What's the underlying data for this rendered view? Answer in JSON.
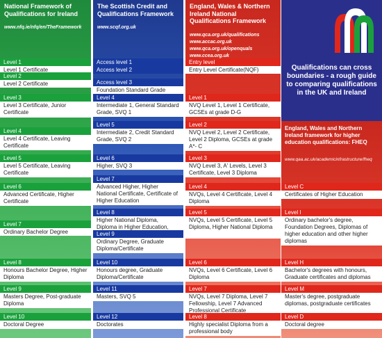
{
  "ireland": {
    "title": "National Framework of Qualifications for Ireland",
    "url": "www.nfq.ie/nfq/en/TheFramework",
    "levels": [
      {
        "label": "Level 1",
        "text": "Level 1 Certificate"
      },
      {
        "label": "Level 2",
        "text": "Level 2 Certificate"
      },
      {
        "label": "Level 3",
        "text": "Level 3 Certificate, Junior Certificate"
      },
      {
        "label": "Level 4",
        "text": "Level 4 Certificate, Leaving Certificate"
      },
      {
        "label": "Level 5",
        "text": "Level 5 Certificate, Leaving Certificate"
      },
      {
        "label": "Level 6",
        "text": "Advanced Certificate, Higher Certificate"
      },
      {
        "label": "Level 7",
        "text": "Ordinary Bachelor Degree"
      },
      {
        "label": "Level 8",
        "text": "Honours Bachelor Degree, Higher Diploma"
      },
      {
        "label": "Level 9",
        "text": "Masters Degree, Post-graduate Diploma"
      },
      {
        "label": "Level 10",
        "text": "Doctoral Degree"
      }
    ]
  },
  "scotland": {
    "title": "The Scottish Credit and Qualifications Framework",
    "url": "www.scqf.org.uk",
    "levels": [
      {
        "label": "Access level 1",
        "text": ""
      },
      {
        "label": "Access level 2",
        "text": ""
      },
      {
        "label": "Access level 3",
        "text": "Foundation Standard Grade"
      },
      {
        "label": "Level 4",
        "text": "Intermediate 1, General Standard Grade, SVQ 1"
      },
      {
        "label": "Level 5",
        "text": "Intermediate 2, Credit Standard Grade, SVQ 2"
      },
      {
        "label": "Level 6",
        "text": "Higher, SVQ 3"
      },
      {
        "label": "Level 7",
        "text": "Advanced Higher, Higher National Certificate, Certificate of Higher Education"
      },
      {
        "label": "Level 8",
        "text": "Higher National Diploma, Diploma in Higher Education, SVQ 4"
      },
      {
        "label": "Level 9",
        "text": "Ordinary Degree, Graduate Diploma/Certificate"
      },
      {
        "label": "Level 10",
        "text": "Honours degree, Graduate Diploma/Certificate"
      },
      {
        "label": "Level 11",
        "text": "Masters, SVQ 5"
      },
      {
        "label": "Level 12",
        "text": "Doctorates"
      }
    ]
  },
  "england": {
    "title": "England, Wales & Northern Ireland National Qualifications Framework",
    "urls": [
      "www.qca.org.uk/qualifications",
      "www.accac.org.uk",
      "www.qca.org.uk/openquals",
      "www.ccea.org.uk"
    ],
    "levels": [
      {
        "label": "Entry level",
        "text": "Entry Level Certificate(NQF)"
      },
      {
        "label": "Level 1",
        "text": "NVQ Level 1, Level 1 Certificate, GCSEs at grade D-G"
      },
      {
        "label": "Level 2",
        "text": "NVQ Level 2, Level 2 Certificate, Level 2 Diploma, GCSEs at grade A*- C"
      },
      {
        "label": "Level 3",
        "text": "NVQ Level 3, A' Levels, Level 3 Certificate, Level 3 Diploma"
      },
      {
        "label": "Level 4",
        "text": "NVQs, Level 4 Certificate, Level 4 Diploma"
      },
      {
        "label": "Level 5",
        "text": "NVQs, Level 5 Certificate, Level 5 Diploma, Higher National Diploma"
      },
      {
        "label": "Level 6",
        "text": "NVQs, Level 6 Certificate, Level 6 Diploma"
      },
      {
        "label": "Level 7",
        "text": "NVQs, Level 7 Diploma, Level 7 Fellowship, Level 7 Advanced Professional Certificate"
      },
      {
        "label": "Level 8",
        "text": "Highly specialist Diploma from a professional body"
      }
    ]
  },
  "note": "Qualifications can cross boundaries - a rough guide to comparing qualifications in the UK and Ireland",
  "higher_ed": {
    "title": "England, Wales and Northern Ireland framework for higher education qualifications: FHEQ",
    "url": "www.qaa.ac.uk/academicinfrastructure/fheq",
    "levels": [
      {
        "label": "Level C",
        "text": "Certificates of Higher Education"
      },
      {
        "label": "Level I",
        "text": "Ordinary bachelor's degree, Foundation Degrees, Diplomas of higher education and other higher diplomas"
      },
      {
        "label": "Level H",
        "text": "Bachelor's degrees with honours, Graduate certificates and diplomas"
      },
      {
        "label": "Level M",
        "text": "Master's degree, postgraduate diplomas, postgraduate certificates"
      },
      {
        "label": "Level D",
        "text": "Doctoral degree"
      }
    ]
  },
  "colors": {
    "ireland": "#1aa13c",
    "scotland": "#183aa0",
    "england": "#e0271c",
    "note": "#2b2f8c"
  }
}
